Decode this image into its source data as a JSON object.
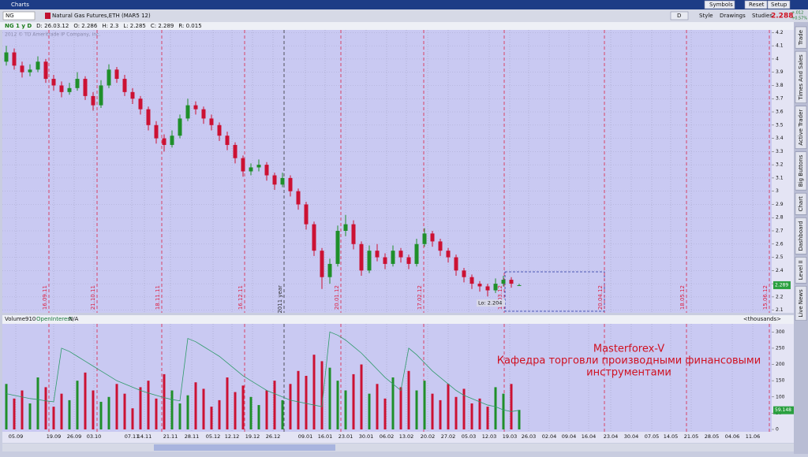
{
  "window": {
    "title": "Charts"
  },
  "toolbar": {
    "symbol": "NG",
    "description": "Natural Gas Futures,ETH (MAR5 12)",
    "buttons": [
      "Symbols",
      "Reset",
      "Setup"
    ],
    "period": "D",
    "tools": [
      "Style",
      "Drawings",
      "Studies"
    ],
    "last_price": "2.288",
    "change": "+.012",
    "change_pct": "+0.57%"
  },
  "info": [
    "NG 1 y D",
    "D: 26.03.12",
    "O: 2.286",
    "H: 2.3",
    "L: 2.285",
    "C: 2.289",
    "R: 0.015"
  ],
  "sidebar": [
    "Trade",
    "Times And Sales",
    "Active Trader",
    "Big Buttons",
    "Chart",
    "Dashboard",
    "Level II",
    "Live News"
  ],
  "chart_data": [
    {
      "type": "candlestick",
      "watermark": "2012 © TD Ameritrade IP Company, Inc.",
      "open": [
        3.98,
        4.05,
        3.95,
        3.9,
        3.92,
        3.98,
        3.85,
        3.8,
        3.75,
        3.78,
        3.85,
        3.72,
        3.65,
        3.8,
        3.92,
        3.85,
        3.75,
        3.7,
        3.62,
        3.5,
        3.4,
        3.35,
        3.42,
        3.55,
        3.65,
        3.62,
        3.55,
        3.5,
        3.42,
        3.35,
        3.25,
        3.15,
        3.18,
        3.2,
        3.12,
        3.05,
        3.1,
        3.0,
        2.9,
        2.75,
        2.55,
        2.35,
        2.45,
        2.7,
        2.75,
        2.6,
        2.4,
        2.55,
        2.5,
        2.45,
        2.55,
        2.5,
        2.45,
        2.6,
        2.68,
        2.62,
        2.55,
        2.5,
        2.4,
        2.35,
        2.3,
        2.28,
        2.25,
        2.3,
        2.33,
        2.286
      ],
      "high": [
        4.1,
        4.08,
        3.98,
        3.96,
        4.02,
        4.0,
        3.88,
        3.83,
        3.82,
        3.9,
        3.87,
        3.75,
        3.84,
        3.96,
        3.94,
        3.88,
        3.78,
        3.72,
        3.64,
        3.53,
        3.43,
        3.46,
        3.58,
        3.7,
        3.68,
        3.64,
        3.58,
        3.52,
        3.45,
        3.37,
        3.27,
        3.21,
        3.24,
        3.22,
        3.14,
        3.14,
        3.12,
        3.02,
        2.92,
        2.77,
        2.57,
        2.49,
        2.74,
        2.82,
        2.78,
        2.62,
        2.59,
        2.6,
        2.53,
        2.59,
        2.57,
        2.52,
        2.64,
        2.72,
        2.7,
        2.64,
        2.57,
        2.52,
        2.42,
        2.37,
        2.32,
        2.3,
        2.34,
        2.36,
        2.35,
        2.3
      ],
      "low": [
        3.95,
        3.92,
        3.86,
        3.87,
        3.9,
        3.82,
        3.76,
        3.71,
        3.73,
        3.76,
        3.69,
        3.61,
        3.63,
        3.78,
        3.82,
        3.72,
        3.66,
        3.58,
        3.46,
        3.36,
        3.3,
        3.33,
        3.4,
        3.53,
        3.58,
        3.51,
        3.46,
        3.38,
        3.31,
        3.21,
        3.11,
        3.12,
        3.15,
        3.08,
        3.01,
        3.03,
        2.96,
        2.86,
        2.71,
        2.51,
        2.26,
        2.3,
        2.43,
        2.66,
        2.56,
        2.36,
        2.38,
        2.47,
        2.41,
        2.43,
        2.46,
        2.41,
        2.43,
        2.58,
        2.58,
        2.51,
        2.46,
        2.36,
        2.31,
        2.26,
        2.24,
        2.204,
        2.23,
        2.28,
        2.27,
        2.285
      ],
      "close": [
        4.05,
        3.95,
        3.9,
        3.92,
        3.98,
        3.85,
        3.8,
        3.75,
        3.78,
        3.85,
        3.72,
        3.65,
        3.8,
        3.92,
        3.85,
        3.75,
        3.7,
        3.62,
        3.5,
        3.4,
        3.35,
        3.42,
        3.55,
        3.65,
        3.62,
        3.55,
        3.5,
        3.42,
        3.35,
        3.25,
        3.15,
        3.18,
        3.2,
        3.12,
        3.05,
        3.1,
        3.0,
        2.9,
        2.75,
        2.55,
        2.35,
        2.45,
        2.7,
        2.75,
        2.6,
        2.4,
        2.55,
        2.5,
        2.45,
        2.55,
        2.5,
        2.45,
        2.6,
        2.68,
        2.62,
        2.55,
        2.5,
        2.4,
        2.35,
        2.3,
        2.28,
        2.25,
        2.3,
        2.33,
        2.3,
        2.289
      ],
      "up_color": "#1f8f2a",
      "down_color": "#cc1133",
      "ylim": [
        2.08,
        4.22
      ],
      "yticks": [
        2.1,
        2.2,
        2.3,
        2.4,
        2.5,
        2.6,
        2.7,
        2.8,
        2.9,
        3,
        3.1,
        3.2,
        3.3,
        3.4,
        3.5,
        3.6,
        3.7,
        3.8,
        3.9,
        4,
        4.1,
        4.2
      ],
      "grid": true,
      "last_label": "2.289",
      "low_annotation": "Lo: 2.204",
      "markers": [
        {
          "label": "16.09.11",
          "color": "#dd2244"
        },
        {
          "label": "21.10.11",
          "color": "#dd2244"
        },
        {
          "label": "18.11.11",
          "color": "#dd2244"
        },
        {
          "label": "16.12.11",
          "color": "#dd2244"
        },
        {
          "label": "2011 year",
          "color": "#333333"
        },
        {
          "label": "20.01.12",
          "color": "#dd2244"
        },
        {
          "label": "17.02.12",
          "color": "#dd2244"
        },
        {
          "label": "16.03.12",
          "color": "#dd2244"
        },
        {
          "label": "20.04.12",
          "color": "#dd2244"
        },
        {
          "label": "18.05.12",
          "color": "#dd2244"
        },
        {
          "label": "15.06.12",
          "color": "#dd2244"
        }
      ]
    },
    {
      "type": "bar",
      "header": [
        "Volume",
        "910",
        "OpenInterest",
        "N/A"
      ],
      "units": "<thousands>",
      "values": [
        140,
        95,
        120,
        80,
        160,
        130,
        70,
        110,
        90,
        150,
        175,
        120,
        85,
        100,
        140,
        110,
        65,
        130,
        150,
        95,
        170,
        120,
        80,
        105,
        145,
        125,
        70,
        90,
        160,
        115,
        135,
        100,
        75,
        120,
        150,
        90,
        140,
        180,
        165,
        230,
        210,
        190,
        150,
        120,
        170,
        200,
        110,
        140,
        95,
        160,
        130,
        180,
        120,
        150,
        110,
        90,
        140,
        100,
        125,
        80,
        95,
        70,
        130,
        110,
        140,
        60
      ],
      "open_interest": [
        110,
        105,
        100,
        95,
        92,
        88,
        85,
        250,
        240,
        225,
        210,
        195,
        180,
        165,
        150,
        140,
        130,
        120,
        112,
        105,
        98,
        92,
        88,
        280,
        270,
        255,
        240,
        225,
        205,
        185,
        165,
        150,
        135,
        120,
        110,
        100,
        90,
        85,
        80,
        75,
        70,
        300,
        290,
        275,
        255,
        235,
        210,
        185,
        160,
        140,
        120,
        250,
        230,
        205,
        180,
        160,
        140,
        120,
        105,
        95,
        85,
        75,
        70,
        60,
        55,
        59
      ],
      "oi_color": "#2f9a6a",
      "ylim": [
        0,
        325
      ],
      "yticks": [
        0,
        50,
        100,
        150,
        200,
        250,
        300
      ],
      "last_label": "59.148",
      "x_labels": [
        "05.09",
        "19.09",
        "26.09",
        "03.10",
        "07.11",
        "14.11",
        "21.11",
        "28.11",
        "05.12",
        "12.12",
        "19.12",
        "26.12",
        "09.01",
        "16.01",
        "23.01",
        "30.01",
        "06.02",
        "13.02",
        "20.02",
        "27.02",
        "05.03",
        "12.03",
        "19.03",
        "26.03",
        "02.04",
        "09.04",
        "16.04",
        "23.04",
        "30.04",
        "07.05",
        "14.05",
        "21.05",
        "28.05",
        "04.06",
        "11.06"
      ],
      "annotation": [
        "Masterforex-V",
        "Кафедра торговли производными финансовыми",
        "инструментами"
      ]
    }
  ]
}
